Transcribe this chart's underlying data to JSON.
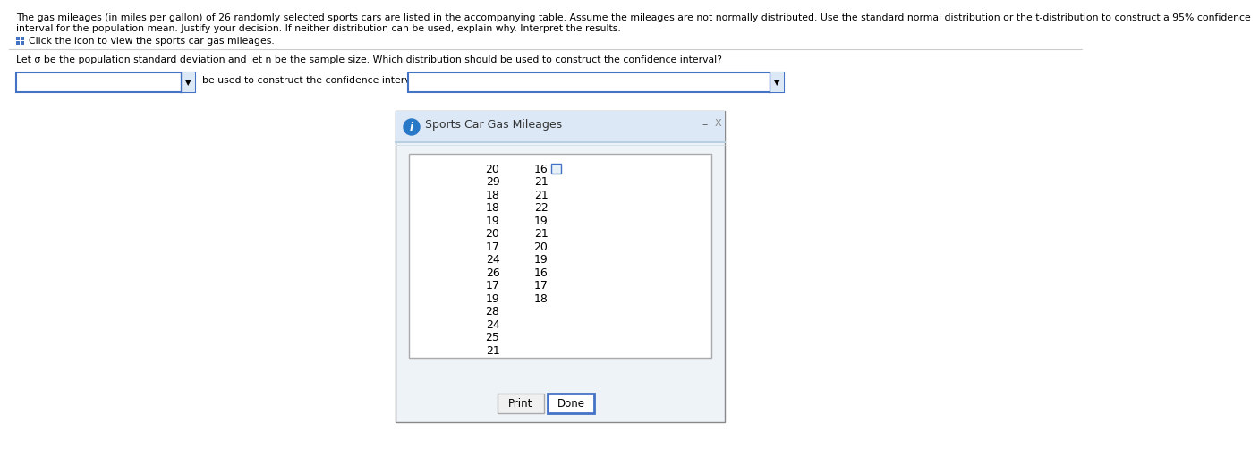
{
  "title_line1": "The gas mileages (in miles per gallon) of 26 randomly selected sports cars are listed in the accompanying table. Assume the mileages are not normally distributed. Use the standard normal distribution or the t-distribution to construct a 95% confidence",
  "title_line2": "interval for the population mean. Justify your decision. If neither distribution can be used, explain why. Interpret the results.",
  "click_text": "Click the icon to view the sports car gas mileages.",
  "question_text": "Let σ be the population standard deviation and let n be the sample size. Which distribution should be used to construct the confidence interval?",
  "between_text": "be used to construct the confidence interval, since",
  "dialog_title": "Sports Car Gas Mileages",
  "col1_values": [
    20,
    29,
    18,
    18,
    19,
    20,
    17,
    24,
    26,
    17,
    19,
    28,
    24,
    25,
    21
  ],
  "col2_values": [
    16,
    21,
    21,
    22,
    19,
    21,
    20,
    19,
    16,
    17,
    18,
    null,
    null,
    null,
    null
  ],
  "print_btn": "Print",
  "done_btn": "Done",
  "bg_color": "#ffffff",
  "dialog_bg": "#eef3f8",
  "dialog_header_bg": "#dce8f5",
  "dialog_separator": "#b8cfe0",
  "dialog_border": "#888888",
  "dropdown_border": "#4472c4",
  "data_box_bg": "#ffffff",
  "data_box_border": "#aaaaaa",
  "icon_color": "#2878c8",
  "info_icon_text": "i",
  "minimize_text": "–",
  "close_text": "X",
  "done_btn_border": "#4472c4",
  "done_btn_bg": "#ffffff",
  "done_btn_fg": "#000000",
  "print_btn_bg": "#f0f0f0",
  "print_btn_border": "#aaaaaa",
  "print_btn_fg": "#000000",
  "font_size_main": 7.8,
  "font_size_dialog_title": 9.0,
  "font_size_data": 9.0,
  "font_size_btn": 8.5
}
